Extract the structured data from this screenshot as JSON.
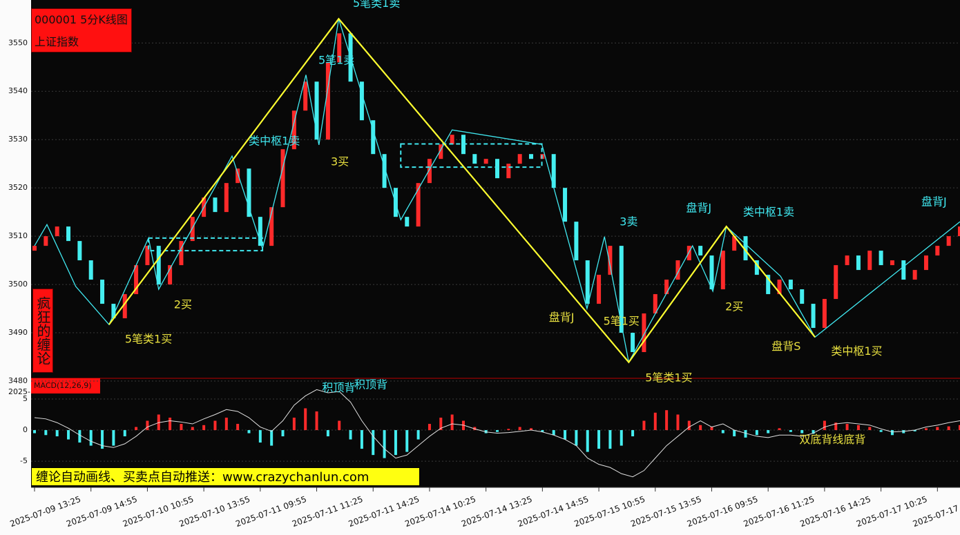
{
  "chart_data": [
    {
      "type": "candlestick",
      "title": "000001 5分K线图",
      "subtitle": "上证指数",
      "x": [
        0,
        2,
        4,
        6,
        8,
        10,
        12,
        14,
        16,
        18,
        20,
        22,
        24,
        26,
        28,
        30,
        32,
        34,
        36,
        38,
        40,
        42,
        44,
        46,
        48,
        50,
        52,
        54,
        56,
        58,
        60,
        62,
        64,
        66,
        68,
        70,
        72,
        74,
        76,
        78,
        80,
        82,
        84,
        86,
        88,
        90,
        92,
        94,
        96,
        98,
        100,
        102,
        104,
        106,
        108,
        110,
        112,
        114,
        116,
        118,
        120,
        122,
        124,
        126,
        128,
        130,
        132,
        134,
        136,
        138,
        140,
        142,
        144,
        146,
        148,
        150,
        152,
        154,
        156,
        158,
        160,
        162,
        164
      ],
      "open": [
        3507,
        3508,
        3510,
        3512,
        3509,
        3505,
        3501,
        3496,
        3493,
        3498,
        3504,
        3508,
        3500,
        3504,
        3509,
        3514,
        3518,
        3515,
        3521,
        3524,
        3514,
        3508,
        3516,
        3528,
        3536,
        3542,
        3530,
        3546,
        3552,
        3542,
        3534,
        3527,
        3520,
        3514,
        3512,
        3521,
        3526,
        3529,
        3531,
        3527,
        3525,
        3526,
        3522,
        3525,
        3527,
        3526,
        3527,
        3520,
        3513,
        3505,
        3496,
        3502,
        3508,
        3490,
        3486,
        3494,
        3498,
        3501,
        3505,
        3508,
        3506,
        3499,
        3507,
        3510,
        3505,
        3502,
        3498,
        3501,
        3499,
        3496,
        3491,
        3497,
        3504,
        3506,
        3503,
        3507,
        3504,
        3505,
        3501,
        3503,
        3506,
        3508,
        3510
      ],
      "values": [
        3508,
        3510,
        3512,
        3509,
        3505,
        3501,
        3496,
        3493,
        3498,
        3504,
        3508,
        3500,
        3504,
        3509,
        3514,
        3518,
        3515,
        3521,
        3524,
        3514,
        3508,
        3516,
        3528,
        3536,
        3542,
        3530,
        3546,
        3552,
        3542,
        3534,
        3527,
        3520,
        3514,
        3512,
        3521,
        3526,
        3529,
        3531,
        3527,
        3525,
        3526,
        3522,
        3525,
        3527,
        3526,
        3527,
        3520,
        3513,
        3505,
        3496,
        3502,
        3508,
        3490,
        3486,
        3494,
        3498,
        3501,
        3505,
        3508,
        3506,
        3499,
        3507,
        3510,
        3505,
        3502,
        3498,
        3501,
        3499,
        3496,
        3491,
        3497,
        3504,
        3506,
        3503,
        3507,
        3504,
        3505,
        3501,
        3503,
        3506,
        3508,
        3510,
        3512
      ],
      "up_color": "#ff2a2a",
      "down_color": "#45eef0",
      "ylim": [
        3480,
        3558.9
      ],
      "yticks": [
        3480,
        3490,
        3500,
        3510,
        3520,
        3530,
        3540,
        3550
      ],
      "grid": true,
      "xlim": [
        0,
        164
      ],
      "xticks": [
        {
          "value": 0,
          "label": "2025-07-09 13:25"
        },
        {
          "value": 10,
          "label": "2025-07-09 14:55"
        },
        {
          "value": 20,
          "label": "2025-07-10 10:55"
        },
        {
          "value": 30,
          "label": "2025-07-10 13:55"
        },
        {
          "value": 40,
          "label": "2025-07-11 09:55"
        },
        {
          "value": 50,
          "label": "2025-07-11 11:25"
        },
        {
          "value": 60,
          "label": "2025-07-11 14:25"
        },
        {
          "value": 70,
          "label": "2025-07-14 10:25"
        },
        {
          "value": 80,
          "label": "2025-07-14 13:25"
        },
        {
          "value": 90,
          "label": "2025-07-14 14:55"
        },
        {
          "value": 100,
          "label": "2025-07-15 10:55"
        },
        {
          "value": 110,
          "label": "2025-07-15 13:55"
        },
        {
          "value": 120,
          "label": "2025-07-16 09:55"
        },
        {
          "value": 130,
          "label": "2025-07-16 11:25"
        },
        {
          "value": 140,
          "label": "2025-07-16 14:25"
        },
        {
          "value": 150,
          "label": "2025-07-17 10:25"
        },
        {
          "value": 160,
          "label": "2025-07-17"
        }
      ],
      "strokes": {
        "color": "#40e8f0",
        "x": [
          0,
          2.2,
          7.3,
          13.2,
          20.2,
          22,
          35,
          40.4,
          48.1,
          50.4,
          53.9,
          64.9,
          74,
          89.9,
          97.9,
          101,
          105.3,
          116.6,
          120.2,
          122.6,
          132.2,
          138.3,
          164
        ],
        "values": [
          3508,
          3512.4,
          3499.6,
          3491.7,
          3509.6,
          3499,
          3526.6,
          3507.4,
          3543.4,
          3528.9,
          3555,
          3513.4,
          3532,
          3529,
          3495,
          3509.9,
          3483.9,
          3508,
          3498.6,
          3512,
          3501.7,
          3489.1,
          3513
        ]
      },
      "segments": {
        "color": "#ffff30",
        "x": [
          13.2,
          53.9,
          105.3,
          122.6,
          138.3
        ],
        "values": [
          3491.7,
          3555,
          3483.9,
          3512,
          3489.1
        ]
      },
      "box_color": "#40e8f0",
      "boxes": [
        {
          "x": [
            20.2,
            40.4
          ],
          "y": [
            3507,
            3509.6
          ]
        },
        {
          "x": [
            64.9,
            89.9
          ],
          "y": [
            3524.3,
            3529.1
          ]
        }
      ],
      "annotations": [
        {
          "text": "5笔类1卖",
          "x": 60.6,
          "y": 3558.1,
          "color": "#40e8f0"
        },
        {
          "text": "5笔1卖",
          "x": 53.5,
          "y": 3546.3,
          "color": "#40e8f0"
        },
        {
          "text": "类中枢1卖",
          "x": 42.5,
          "y": 3529.6,
          "color": "#40e8f0"
        },
        {
          "text": "3买",
          "x": 54.1,
          "y": 3525.3,
          "color": "#e8e040"
        },
        {
          "text": "2买",
          "x": 26.3,
          "y": 3495.7,
          "color": "#e8e040"
        },
        {
          "text": "5笔类1买",
          "x": 20.2,
          "y": 3488.6,
          "color": "#e8e040"
        },
        {
          "text": "3卖",
          "x": 105.3,
          "y": 3512.9,
          "color": "#40e8f0"
        },
        {
          "text": "盘背J",
          "x": 93.4,
          "y": 3493.1,
          "color": "#e8e040"
        },
        {
          "text": "5笔1买",
          "x": 104,
          "y": 3492.3,
          "color": "#e8e040"
        },
        {
          "text": "5笔类1买",
          "x": 112.4,
          "y": 3480.6,
          "color": "#e8e040"
        },
        {
          "text": "盘背J",
          "x": 117.7,
          "y": 3515.7,
          "color": "#40e8f0"
        },
        {
          "text": "类中枢1卖",
          "x": 130.1,
          "y": 3514.9,
          "color": "#40e8f0"
        },
        {
          "text": "2买",
          "x": 124,
          "y": 3495.3,
          "color": "#e8e040"
        },
        {
          "text": "盘背S",
          "x": 133.2,
          "y": 3487.1,
          "color": "#e8e040"
        },
        {
          "text": "类中枢1买",
          "x": 145.7,
          "y": 3486.1,
          "color": "#e8e040"
        },
        {
          "text": "盘背J",
          "x": 159.4,
          "y": 3517,
          "color": "#40e8f0"
        }
      ]
    },
    {
      "type": "macd",
      "title": "MACD(12,26,9)",
      "x": [
        0,
        2,
        4,
        6,
        8,
        10,
        12,
        14,
        16,
        18,
        20,
        22,
        24,
        26,
        28,
        30,
        32,
        34,
        36,
        38,
        40,
        42,
        44,
        46,
        48,
        50,
        52,
        54,
        56,
        58,
        60,
        62,
        64,
        66,
        68,
        70,
        72,
        74,
        76,
        78,
        80,
        82,
        84,
        86,
        88,
        90,
        92,
        94,
        96,
        98,
        100,
        102,
        104,
        106,
        108,
        110,
        112,
        114,
        116,
        118,
        120,
        122,
        124,
        126,
        128,
        130,
        132,
        134,
        136,
        138,
        140,
        142,
        144,
        146,
        148,
        150,
        152,
        154,
        156,
        158,
        160,
        162,
        164
      ],
      "xlim": [
        0,
        164
      ],
      "ylim": [
        -9.2,
        8.1
      ],
      "yticks": [
        5,
        0,
        -5
      ],
      "grid": true,
      "up_color": "#ff2a2a",
      "down_color": "#45eef0",
      "line_color": "#e0e0e0",
      "series": [
        {
          "name": "MACD",
          "values": [
            -0.5,
            -0.8,
            -1.0,
            -1.5,
            -2.0,
            -2.5,
            -3.0,
            -2.5,
            -1.0,
            0.5,
            1.5,
            2.5,
            2.0,
            1.0,
            0.5,
            0.8,
            1.5,
            2.0,
            1.0,
            -0.5,
            -2.0,
            -2.5,
            -1.0,
            2.0,
            3.5,
            3.0,
            -1.0,
            1.5,
            -1.5,
            -3.0,
            -4.0,
            -4.5,
            -4.0,
            -3.5,
            -1.5,
            1.0,
            2.0,
            2.5,
            1.5,
            0.5,
            -0.5,
            -0.3,
            0.2,
            0.5,
            0.3,
            -0.3,
            -0.8,
            -1.5,
            -2.5,
            -3.5,
            -3.0,
            -3.0,
            -2.5,
            -1.0,
            1.5,
            2.8,
            3.2,
            2.5,
            1.5,
            0.8,
            0.5,
            -0.5,
            -1.0,
            -1.2,
            -0.8,
            -0.5,
            0.3,
            -0.3,
            -0.5,
            -0.6,
            1.5,
            1.2,
            1.0,
            0.8,
            0.5,
            -0.3,
            -0.8,
            -0.5,
            -0.2,
            0.3,
            0.5,
            0.6,
            0.8
          ]
        },
        {
          "name": "DIF",
          "values": [
            2,
            1.8,
            1.2,
            0.3,
            -0.8,
            -1.8,
            -2.5,
            -2.8,
            -2.2,
            -1.0,
            0.5,
            1.2,
            1.5,
            1.3,
            1.0,
            1.8,
            2.5,
            3.3,
            3.0,
            2.0,
            0.5,
            -0.2,
            1.5,
            4.0,
            5.5,
            6.5,
            6.0,
            6.2,
            4.5,
            1.5,
            -1.0,
            -3.0,
            -4.5,
            -4.0,
            -2.5,
            -1.0,
            0.3,
            1.0,
            0.8,
            0.2,
            -0.3,
            -0.5,
            -0.4,
            -0.2,
            0.0,
            -0.3,
            -0.8,
            -1.5,
            -2.5,
            -4.5,
            -5.5,
            -6.0,
            -7.0,
            -7.5,
            -6.5,
            -4.5,
            -2.5,
            -1.0,
            0.5,
            1.5,
            0.5,
            1.0,
            0.0,
            -0.5,
            -1.0,
            -1.2,
            -0.8,
            -0.8,
            -1.0,
            -0.5,
            0.5,
            1.0,
            1.2,
            1.0,
            0.8,
            0.2,
            -0.3,
            -0.2,
            0.0,
            0.5,
            0.8,
            1.2,
            1.5
          ]
        }
      ],
      "annotations": [
        {
          "text": "积顶背",
          "x": 53.9,
          "y": 6.7,
          "color": "#40e8f0"
        },
        {
          "text": "积顶背",
          "x": 59.6,
          "y": 7.2,
          "color": "#40e8f0"
        },
        {
          "text": "双底背线底背",
          "x": 141.4,
          "y": -1.6,
          "color": "#e8e040"
        }
      ]
    }
  ],
  "axis_note": "2025-",
  "side_label": "疯狂的缠论",
  "banner": "缠论自动画线、买卖点自动推送：www.crazychanlun.com"
}
